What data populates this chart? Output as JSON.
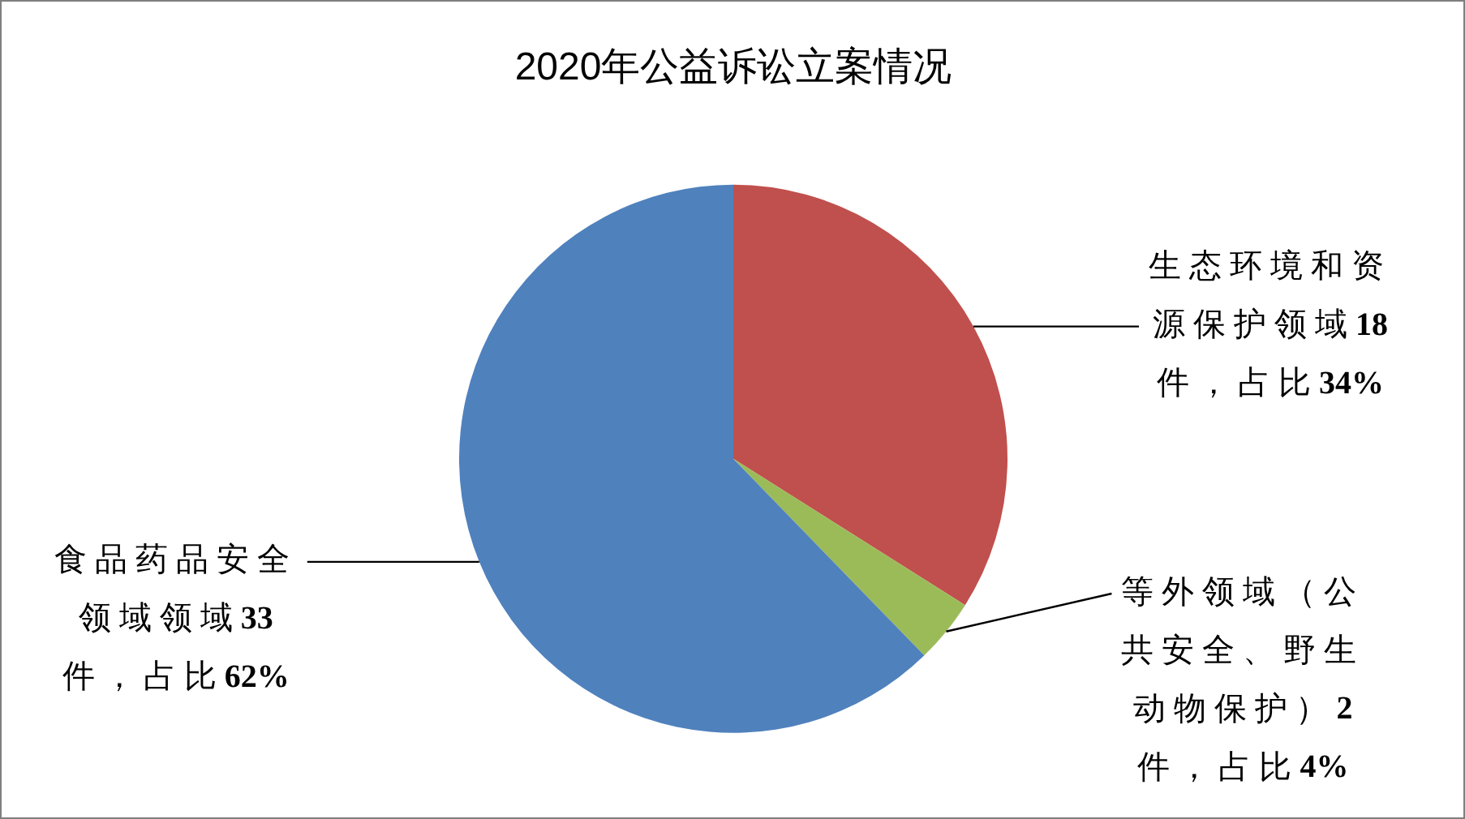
{
  "chart_data": {
    "type": "pie",
    "title": "2020年公益诉讼立案情况",
    "categories": [
      "生态环境和资源保护领域18件，占比34%",
      "等外领域（公共安全、野生动物保护）2件，占比4%",
      "食品药品安全领域领域33件，占比62%"
    ],
    "values": [
      18,
      2,
      33
    ],
    "colors": [
      "#c0504d",
      "#9bbb59",
      "#4f81bd"
    ]
  }
}
